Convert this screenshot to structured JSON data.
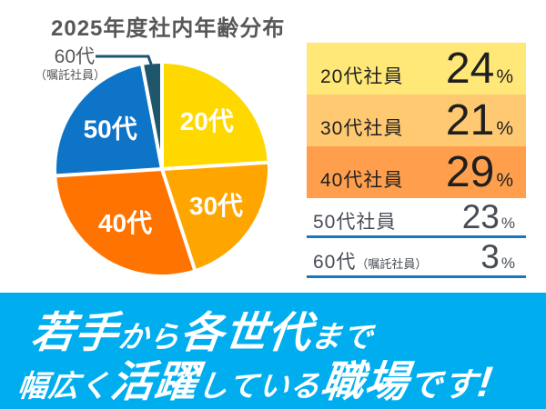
{
  "title": "2025年度社内年齢分布",
  "chart_data": {
    "type": "pie",
    "title": "2025年度社内年齢分布",
    "direction": "clockwise",
    "start_angle_deg": 0,
    "categories": [
      "20代",
      "30代",
      "40代",
      "50代",
      "60代（嘱託社員）"
    ],
    "values": [
      24,
      21,
      29,
      23,
      3
    ],
    "colors": [
      "#FFD800",
      "#FFA500",
      "#FF7300",
      "#0E74C8",
      "#20566C"
    ],
    "inside_labels": [
      "20代",
      "30代",
      "40代",
      "50代",
      ""
    ],
    "callout": {
      "label": "60代",
      "sublabel": "（嘱託社員）",
      "line_color": "#1F5570"
    },
    "label_color": "#FFFFFF",
    "separator_color": "#FFFFFF"
  },
  "legend": {
    "underline_color": "#1878BE",
    "rows": [
      {
        "label": "20代社員",
        "value": "24",
        "unit": "%",
        "bg": "#FFE878"
      },
      {
        "label": "30代社員",
        "value": "21",
        "unit": "%",
        "bg": "#FFC972"
      },
      {
        "label": "40代社員",
        "value": "29",
        "unit": "%",
        "bg": "#FF9F4D"
      },
      {
        "label": "50代社員",
        "value": "23",
        "unit": "%",
        "bg": ""
      },
      {
        "label": "60代",
        "label_small": "（嘱託社員）",
        "value": "3",
        "unit": "%",
        "bg": ""
      }
    ]
  },
  "banner": {
    "bg": "#00AEF0",
    "text_color": "#FFFFFF",
    "line1": [
      {
        "text": "若手"
      },
      {
        "text": "から"
      },
      {
        "text": "各世代"
      },
      {
        "text": "まで"
      }
    ],
    "line2": [
      {
        "text": "幅広く"
      },
      {
        "text": "活躍"
      },
      {
        "text": "している"
      },
      {
        "text": "職場"
      },
      {
        "text": "です"
      },
      {
        "text": "!"
      }
    ]
  }
}
